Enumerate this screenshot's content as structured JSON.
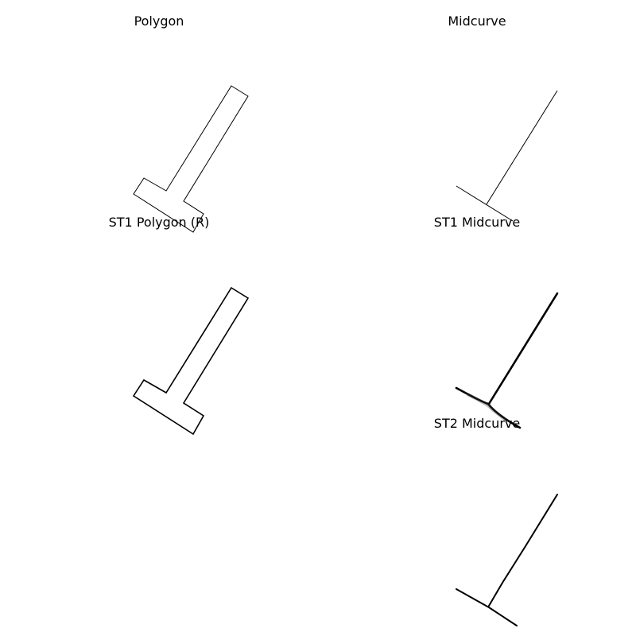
{
  "panels": [
    {
      "title": "Polygon"
    },
    {
      "title": "Midcurve"
    },
    {
      "title": "ST1 Polygon (R)"
    },
    {
      "title": "ST1 Midcurve"
    },
    {
      "title": ""
    },
    {
      "title": "ST2 Midcurve"
    }
  ],
  "colors": {
    "stroke": "#000000",
    "background": "#ffffff"
  }
}
